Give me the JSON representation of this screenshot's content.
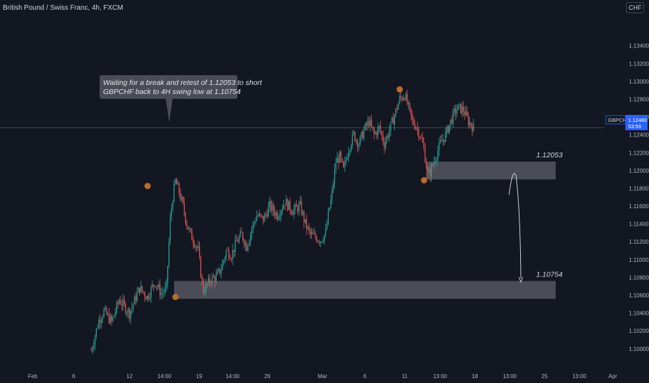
{
  "header": {
    "title": "British Pound / Swiss Franc, 4h, FXCM",
    "currency_button": "CHF"
  },
  "colors": {
    "background": "#131722",
    "up": "#26a69a",
    "down": "#ef5350",
    "zone": "#5d606b",
    "marker": "#b86d2a",
    "price_tag": "#2962ff"
  },
  "chart_data": {
    "type": "candlestick",
    "symbol": "GBPCHF",
    "timeframe": "4h",
    "ylim": [
      1.0992,
      1.1364
    ],
    "y_ticks": [
      "1.13400",
      "1.13200",
      "1.13000",
      "1.12800",
      "1.12600",
      "1.12400",
      "1.12200",
      "1.12000",
      "1.11800",
      "1.11600",
      "1.11400",
      "1.11200",
      "1.11000",
      "1.10800",
      "1.10600",
      "1.10400",
      "1.10200",
      "1.10000"
    ],
    "x_ticks": [
      "Feb",
      "6",
      "12",
      "14:00",
      "19",
      "14:00",
      "26",
      "Mar",
      "6",
      "11",
      "13:00",
      "18",
      "13:00",
      "25",
      "13:00",
      "Apr"
    ],
    "last_price": {
      "symbol": "GBPCHF",
      "value": "1.12480",
      "countdown": "53:59"
    },
    "zones": [
      {
        "label": "1.12053",
        "top": 1.121,
        "bottom": 1.119
      },
      {
        "label": "1.10754",
        "top": 1.1076,
        "bottom": 1.1056
      }
    ],
    "annotation": {
      "lines": [
        "Waiting for a break and retest of 1.12053 to short",
        "GBPCHF back to 4H swing low at 1.10754"
      ]
    },
    "swing_points": [
      {
        "type": "high",
        "price": 1.11826
      },
      {
        "type": "low",
        "price": 1.1058
      },
      {
        "type": "high",
        "price": 1.1291
      },
      {
        "type": "low",
        "price": 1.1189
      }
    ],
    "path": [
      [
        0,
        1.0998
      ],
      [
        6,
        1.1032
      ],
      [
        10,
        1.1042
      ],
      [
        16,
        1.103
      ],
      [
        22,
        1.1055
      ],
      [
        30,
        1.104
      ],
      [
        38,
        1.1068
      ],
      [
        44,
        1.1058
      ],
      [
        50,
        1.1075
      ],
      [
        55,
        1.1062
      ],
      [
        58,
        1.1066
      ],
      [
        59,
        1.1068
      ],
      [
        62,
        1.1145
      ],
      [
        64,
        1.117
      ],
      [
        66,
        1.1188
      ],
      [
        69,
        1.1176
      ],
      [
        72,
        1.116
      ],
      [
        75,
        1.114
      ],
      [
        78,
        1.1128
      ],
      [
        81,
        1.112
      ],
      [
        84,
        1.111
      ],
      [
        86,
        1.1085
      ],
      [
        88,
        1.1065
      ],
      [
        90,
        1.107
      ],
      [
        94,
        1.1078
      ],
      [
        98,
        1.108
      ],
      [
        102,
        1.109
      ],
      [
        106,
        1.111
      ],
      [
        110,
        1.1105
      ],
      [
        114,
        1.112
      ],
      [
        118,
        1.1128
      ],
      [
        122,
        1.1115
      ],
      [
        126,
        1.1135
      ],
      [
        130,
        1.115
      ],
      [
        135,
        1.1145
      ],
      [
        140,
        1.116
      ],
      [
        146,
        1.115
      ],
      [
        152,
        1.1165
      ],
      [
        158,
        1.1155
      ],
      [
        164,
        1.116
      ],
      [
        168,
        1.114
      ],
      [
        172,
        1.1128
      ],
      [
        176,
        1.1125
      ],
      [
        180,
        1.1122
      ],
      [
        184,
        1.113
      ],
      [
        186,
        1.115
      ],
      [
        189,
        1.1175
      ],
      [
        192,
        1.121
      ],
      [
        195,
        1.1215
      ],
      [
        198,
        1.12
      ],
      [
        202,
        1.1225
      ],
      [
        206,
        1.124
      ],
      [
        210,
        1.123
      ],
      [
        214,
        1.1245
      ],
      [
        218,
        1.1255
      ],
      [
        222,
        1.124
      ],
      [
        226,
        1.1248
      ],
      [
        230,
        1.123
      ],
      [
        234,
        1.1245
      ],
      [
        238,
        1.1262
      ],
      [
        242,
        1.128
      ],
      [
        246,
        1.1285
      ],
      [
        249,
        1.127
      ],
      [
        252,
        1.1255
      ],
      [
        255,
        1.125
      ],
      [
        258,
        1.124
      ],
      [
        261,
        1.1225
      ],
      [
        264,
        1.1195
      ],
      [
        266,
        1.1198
      ],
      [
        270,
        1.1215
      ],
      [
        274,
        1.123
      ],
      [
        278,
        1.124
      ],
      [
        282,
        1.1255
      ],
      [
        285,
        1.1265
      ],
      [
        288,
        1.127
      ],
      [
        292,
        1.1268
      ],
      [
        296,
        1.1255
      ],
      [
        300,
        1.1248
      ]
    ]
  }
}
